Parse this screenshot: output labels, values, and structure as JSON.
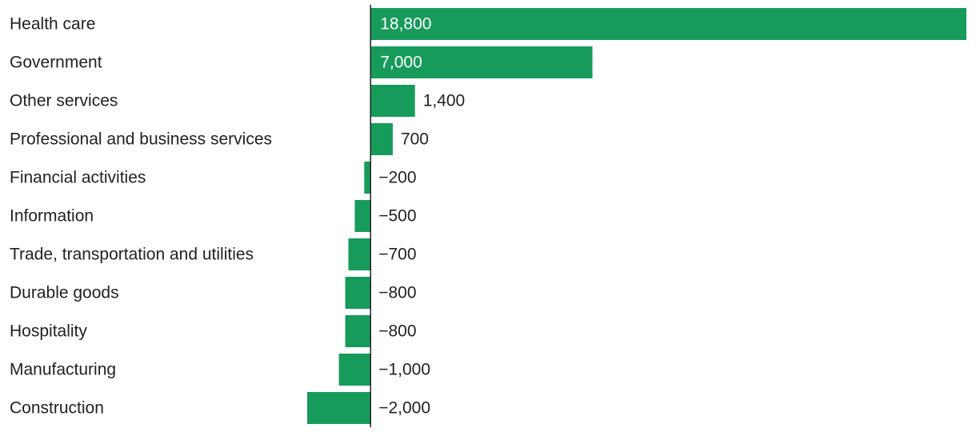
{
  "chart_data": {
    "type": "bar",
    "orientation": "horizontal",
    "categories": [
      "Health care",
      "Government",
      "Other services",
      "Professional and business services",
      "Financial activities",
      "Information",
      "Trade, transportation and utilities",
      "Durable goods",
      "Hospitality",
      "Manufacturing",
      "Construction"
    ],
    "values": [
      18800,
      7000,
      1400,
      700,
      -200,
      -500,
      -700,
      -800,
      -800,
      -1000,
      -2000
    ],
    "value_labels": [
      "18,800",
      "7,000",
      "1,400",
      "700",
      "−200",
      "−500",
      "−700",
      "−800",
      "−800",
      "−1,000",
      "−2,000"
    ],
    "title": "",
    "xlabel": "",
    "ylabel": "",
    "xlim": [
      -2000,
      18800
    ],
    "grid": false,
    "legend": "none",
    "colors": {
      "bar": "#169b5a",
      "baseline": "#222222",
      "text": "#222222",
      "label_inside": "#ffffff"
    }
  }
}
